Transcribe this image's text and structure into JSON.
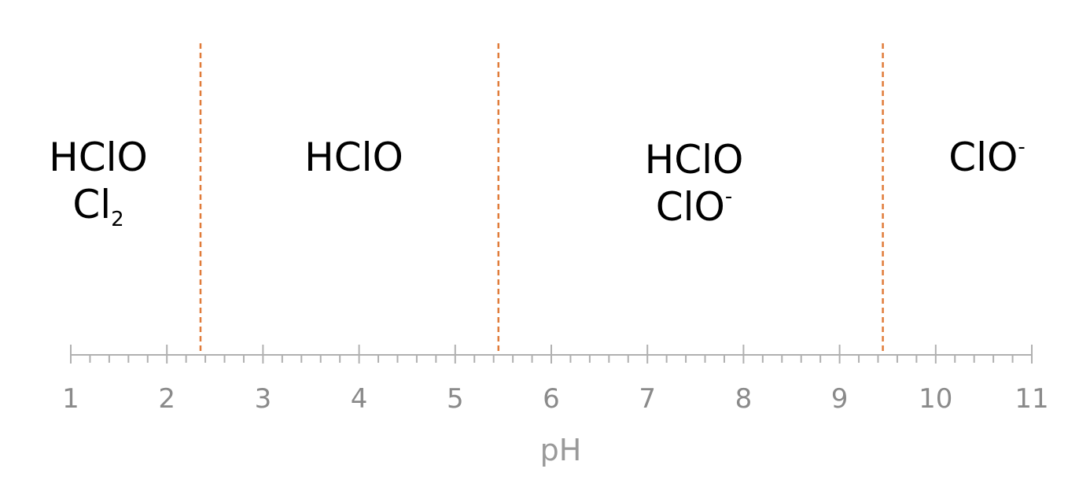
{
  "axis": {
    "label": "pH",
    "min": 1,
    "max": 11,
    "ticks": [
      "1",
      "2",
      "3",
      "4",
      "5",
      "6",
      "7",
      "8",
      "9",
      "10",
      "11"
    ],
    "minor_ticks_per_unit": 5,
    "color": "#b0b0b0",
    "label_color": "#8a8a8a"
  },
  "boundaries": [
    {
      "ph": 2.35
    },
    {
      "ph": 5.45
    },
    {
      "ph": 9.45
    }
  ],
  "boundary_color": "#e07b39",
  "regions": [
    {
      "lines": [
        {
          "text": "HClO"
        },
        {
          "text": "Cl",
          "sub": "2"
        }
      ]
    },
    {
      "lines": [
        {
          "text": "HClO"
        }
      ]
    },
    {
      "lines": [
        {
          "text": "HClO"
        },
        {
          "text": "ClO",
          "sup": "-"
        }
      ]
    },
    {
      "lines": [
        {
          "text": "ClO",
          "sup": "-"
        }
      ]
    }
  ]
}
